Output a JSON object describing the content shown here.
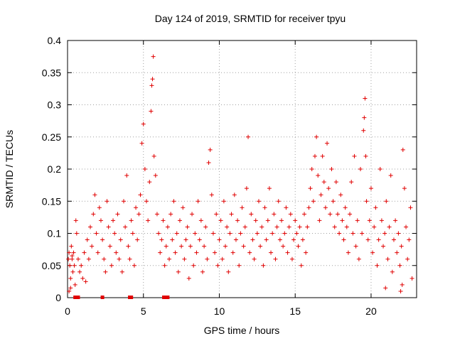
{
  "chart_data": {
    "type": "scatter",
    "title": "Day 124 of 2019, SRMTID for receiver tpyu",
    "xlabel": "GPS time / hours",
    "ylabel": "SRMTID / TECUs",
    "xlim": [
      0,
      23
    ],
    "ylim": [
      0,
      0.4
    ],
    "xticks": [
      0,
      5,
      10,
      15,
      20
    ],
    "yticks": [
      0,
      0.05,
      0.1,
      0.15,
      0.2,
      0.25,
      0.3,
      0.35,
      0.4
    ],
    "xtick_labels": [
      "0",
      "5",
      "10",
      "15",
      "20"
    ],
    "ytick_labels": [
      "0",
      "0.05",
      "0.1",
      "0.15",
      "0.2",
      "0.25",
      "0.3",
      "0.35",
      "0.4"
    ],
    "grid": true,
    "marker": "+",
    "color": "#e00000",
    "series": [
      {
        "name": "SRMTID",
        "points": [
          [
            0.05,
            0.06
          ],
          [
            0.1,
            0.07
          ],
          [
            0.15,
            0.05
          ],
          [
            0.2,
            0.03
          ],
          [
            0.25,
            0.08
          ],
          [
            0.3,
            0.06
          ],
          [
            0.35,
            0.04
          ],
          [
            0.4,
            0.07
          ],
          [
            0.45,
            0.05
          ],
          [
            0.5,
            0.02
          ],
          [
            0.1,
            0.01
          ],
          [
            0.2,
            0.015
          ],
          [
            0.3,
            0.065
          ],
          [
            0.55,
            0.12
          ],
          [
            0.6,
            0.1
          ],
          [
            0.7,
            0.06
          ],
          [
            0.8,
            0.04
          ],
          [
            0.9,
            0.05
          ],
          [
            1.0,
            0.03
          ],
          [
            1.1,
            0.07
          ],
          [
            1.2,
            0.025
          ],
          [
            1.3,
            0.09
          ],
          [
            1.4,
            0.06
          ],
          [
            1.5,
            0.11
          ],
          [
            1.6,
            0.08
          ],
          [
            1.7,
            0.13
          ],
          [
            1.8,
            0.16
          ],
          [
            1.9,
            0.1
          ],
          [
            2.0,
            0.07
          ],
          [
            2.1,
            0.14
          ],
          [
            2.2,
            0.12
          ],
          [
            2.3,
            0.09
          ],
          [
            2.4,
            0.06
          ],
          [
            2.5,
            0.04
          ],
          [
            2.6,
            0.15
          ],
          [
            2.7,
            0.11
          ],
          [
            2.8,
            0.08
          ],
          [
            2.9,
            0.05
          ],
          [
            3.0,
            0.12
          ],
          [
            3.1,
            0.1
          ],
          [
            3.2,
            0.07
          ],
          [
            3.3,
            0.13
          ],
          [
            3.4,
            0.06
          ],
          [
            3.5,
            0.09
          ],
          [
            3.6,
            0.04
          ],
          [
            3.7,
            0.15
          ],
          [
            3.8,
            0.11
          ],
          [
            3.9,
            0.19
          ],
          [
            4.0,
            0.08
          ],
          [
            4.1,
            0.06
          ],
          [
            4.2,
            0.12
          ],
          [
            4.3,
            0.1
          ],
          [
            4.4,
            0.05
          ],
          [
            4.5,
            0.14
          ],
          [
            4.6,
            0.09
          ],
          [
            4.7,
            0.13
          ],
          [
            4.8,
            0.16
          ],
          [
            4.9,
            0.24
          ],
          [
            5.0,
            0.27
          ],
          [
            5.1,
            0.2
          ],
          [
            5.2,
            0.15
          ],
          [
            5.3,
            0.12
          ],
          [
            5.4,
            0.18
          ],
          [
            5.5,
            0.29
          ],
          [
            5.55,
            0.33
          ],
          [
            5.6,
            0.34
          ],
          [
            5.65,
            0.375
          ],
          [
            5.7,
            0.22
          ],
          [
            5.8,
            0.19
          ],
          [
            5.9,
            0.13
          ],
          [
            6.0,
            0.1
          ],
          [
            6.1,
            0.07
          ],
          [
            6.2,
            0.09
          ],
          [
            6.3,
            0.12
          ],
          [
            6.4,
            0.05
          ],
          [
            6.5,
            0.08
          ],
          [
            6.6,
            0.11
          ],
          [
            6.7,
            0.06
          ],
          [
            6.8,
            0.13
          ],
          [
            6.9,
            0.09
          ],
          [
            7.0,
            0.15
          ],
          [
            7.1,
            0.07
          ],
          [
            7.2,
            0.1
          ],
          [
            7.3,
            0.04
          ],
          [
            7.4,
            0.12
          ],
          [
            7.5,
            0.08
          ],
          [
            7.6,
            0.14
          ],
          [
            7.7,
            0.06
          ],
          [
            7.8,
            0.09
          ],
          [
            7.9,
            0.11
          ],
          [
            8.0,
            0.03
          ],
          [
            8.1,
            0.08
          ],
          [
            8.2,
            0.13
          ],
          [
            8.3,
            0.05
          ],
          [
            8.4,
            0.1
          ],
          [
            8.5,
            0.07
          ],
          [
            8.6,
            0.15
          ],
          [
            8.7,
            0.09
          ],
          [
            8.8,
            0.12
          ],
          [
            8.9,
            0.04
          ],
          [
            9.0,
            0.08
          ],
          [
            9.1,
            0.11
          ],
          [
            9.2,
            0.06
          ],
          [
            9.3,
            0.21
          ],
          [
            9.4,
            0.23
          ],
          [
            9.5,
            0.16
          ],
          [
            9.6,
            0.1
          ],
          [
            9.7,
            0.07
          ],
          [
            9.8,
            0.13
          ],
          [
            9.9,
            0.05
          ],
          [
            10.0,
            0.09
          ],
          [
            10.1,
            0.12
          ],
          [
            10.2,
            0.06
          ],
          [
            10.3,
            0.15
          ],
          [
            10.4,
            0.08
          ],
          [
            10.5,
            0.11
          ],
          [
            10.6,
            0.04
          ],
          [
            10.7,
            0.1
          ],
          [
            10.8,
            0.13
          ],
          [
            10.9,
            0.07
          ],
          [
            11.0,
            0.16
          ],
          [
            11.1,
            0.09
          ],
          [
            11.2,
            0.12
          ],
          [
            11.3,
            0.05
          ],
          [
            11.4,
            0.1
          ],
          [
            11.5,
            0.14
          ],
          [
            11.6,
            0.08
          ],
          [
            11.7,
            0.11
          ],
          [
            11.8,
            0.17
          ],
          [
            11.9,
            0.25
          ],
          [
            12.0,
            0.07
          ],
          [
            12.1,
            0.13
          ],
          [
            12.2,
            0.09
          ],
          [
            12.3,
            0.06
          ],
          [
            12.4,
            0.12
          ],
          [
            12.5,
            0.1
          ],
          [
            12.6,
            0.15
          ],
          [
            12.7,
            0.08
          ],
          [
            12.8,
            0.11
          ],
          [
            12.9,
            0.05
          ],
          [
            13.0,
            0.14
          ],
          [
            13.1,
            0.09
          ],
          [
            13.2,
            0.12
          ],
          [
            13.3,
            0.17
          ],
          [
            13.4,
            0.07
          ],
          [
            13.5,
            0.1
          ],
          [
            13.6,
            0.13
          ],
          [
            13.7,
            0.06
          ],
          [
            13.8,
            0.11
          ],
          [
            13.9,
            0.15
          ],
          [
            14.0,
            0.09
          ],
          [
            14.1,
            0.12
          ],
          [
            14.2,
            0.08
          ],
          [
            14.3,
            0.1
          ],
          [
            14.4,
            0.14
          ],
          [
            14.5,
            0.07
          ],
          [
            14.6,
            0.11
          ],
          [
            14.7,
            0.13
          ],
          [
            14.8,
            0.06
          ],
          [
            14.9,
            0.09
          ],
          [
            15.0,
            0.12
          ],
          [
            15.1,
            0.1
          ],
          [
            15.2,
            0.08
          ],
          [
            15.3,
            0.11
          ],
          [
            15.4,
            0.05
          ],
          [
            15.5,
            0.09
          ],
          [
            15.6,
            0.13
          ],
          [
            15.7,
            0.07
          ],
          [
            15.8,
            0.11
          ],
          [
            15.9,
            0.14
          ],
          [
            16.0,
            0.17
          ],
          [
            16.1,
            0.2
          ],
          [
            16.2,
            0.15
          ],
          [
            16.3,
            0.22
          ],
          [
            16.4,
            0.25
          ],
          [
            16.5,
            0.19
          ],
          [
            16.6,
            0.12
          ],
          [
            16.7,
            0.16
          ],
          [
            16.8,
            0.22
          ],
          [
            16.9,
            0.18
          ],
          [
            17.0,
            0.14
          ],
          [
            17.1,
            0.24
          ],
          [
            17.2,
            0.17
          ],
          [
            17.3,
            0.13
          ],
          [
            17.4,
            0.2
          ],
          [
            17.5,
            0.15
          ],
          [
            17.6,
            0.11
          ],
          [
            17.7,
            0.18
          ],
          [
            17.8,
            0.13
          ],
          [
            17.9,
            0.1
          ],
          [
            18.0,
            0.16
          ],
          [
            18.1,
            0.12
          ],
          [
            18.2,
            0.09
          ],
          [
            18.3,
            0.14
          ],
          [
            18.4,
            0.11
          ],
          [
            18.5,
            0.07
          ],
          [
            18.6,
            0.13
          ],
          [
            18.7,
            0.18
          ],
          [
            18.8,
            0.1
          ],
          [
            18.9,
            0.22
          ],
          [
            19.0,
            0.08
          ],
          [
            19.1,
            0.12
          ],
          [
            19.2,
            0.06
          ],
          [
            19.3,
            0.2
          ],
          [
            19.4,
            0.1
          ],
          [
            19.5,
            0.26
          ],
          [
            19.55,
            0.28
          ],
          [
            19.6,
            0.31
          ],
          [
            19.65,
            0.22
          ],
          [
            19.7,
            0.15
          ],
          [
            19.8,
            0.09
          ],
          [
            19.9,
            0.12
          ],
          [
            20.0,
            0.17
          ],
          [
            20.1,
            0.07
          ],
          [
            20.2,
            0.11
          ],
          [
            20.3,
            0.14
          ],
          [
            20.4,
            0.05
          ],
          [
            20.5,
            0.09
          ],
          [
            20.6,
            0.2
          ],
          [
            20.7,
            0.12
          ],
          [
            20.8,
            0.08
          ],
          [
            20.9,
            0.1
          ],
          [
            21.0,
            0.15
          ],
          [
            21.1,
            0.06
          ],
          [
            21.2,
            0.11
          ],
          [
            21.3,
            0.19
          ],
          [
            21.4,
            0.04
          ],
          [
            21.5,
            0.09
          ],
          [
            21.6,
            0.12
          ],
          [
            21.7,
            0.07
          ],
          [
            21.8,
            0.1
          ],
          [
            21.9,
            0.05
          ],
          [
            22.0,
            0.08
          ],
          [
            22.1,
            0.23
          ],
          [
            22.2,
            0.17
          ],
          [
            22.3,
            0.11
          ],
          [
            22.4,
            0.06
          ],
          [
            22.5,
            0.09
          ],
          [
            22.6,
            0.14
          ],
          [
            22.7,
            0.03
          ],
          [
            21.95,
            0.01
          ],
          [
            22.05,
            0.02
          ],
          [
            20.95,
            0.015
          ]
        ]
      }
    ],
    "gap_markers_x": [
      0.5,
      0.6,
      0.7,
      2.3,
      4.1,
      4.2,
      6.35,
      6.5,
      6.6
    ]
  }
}
